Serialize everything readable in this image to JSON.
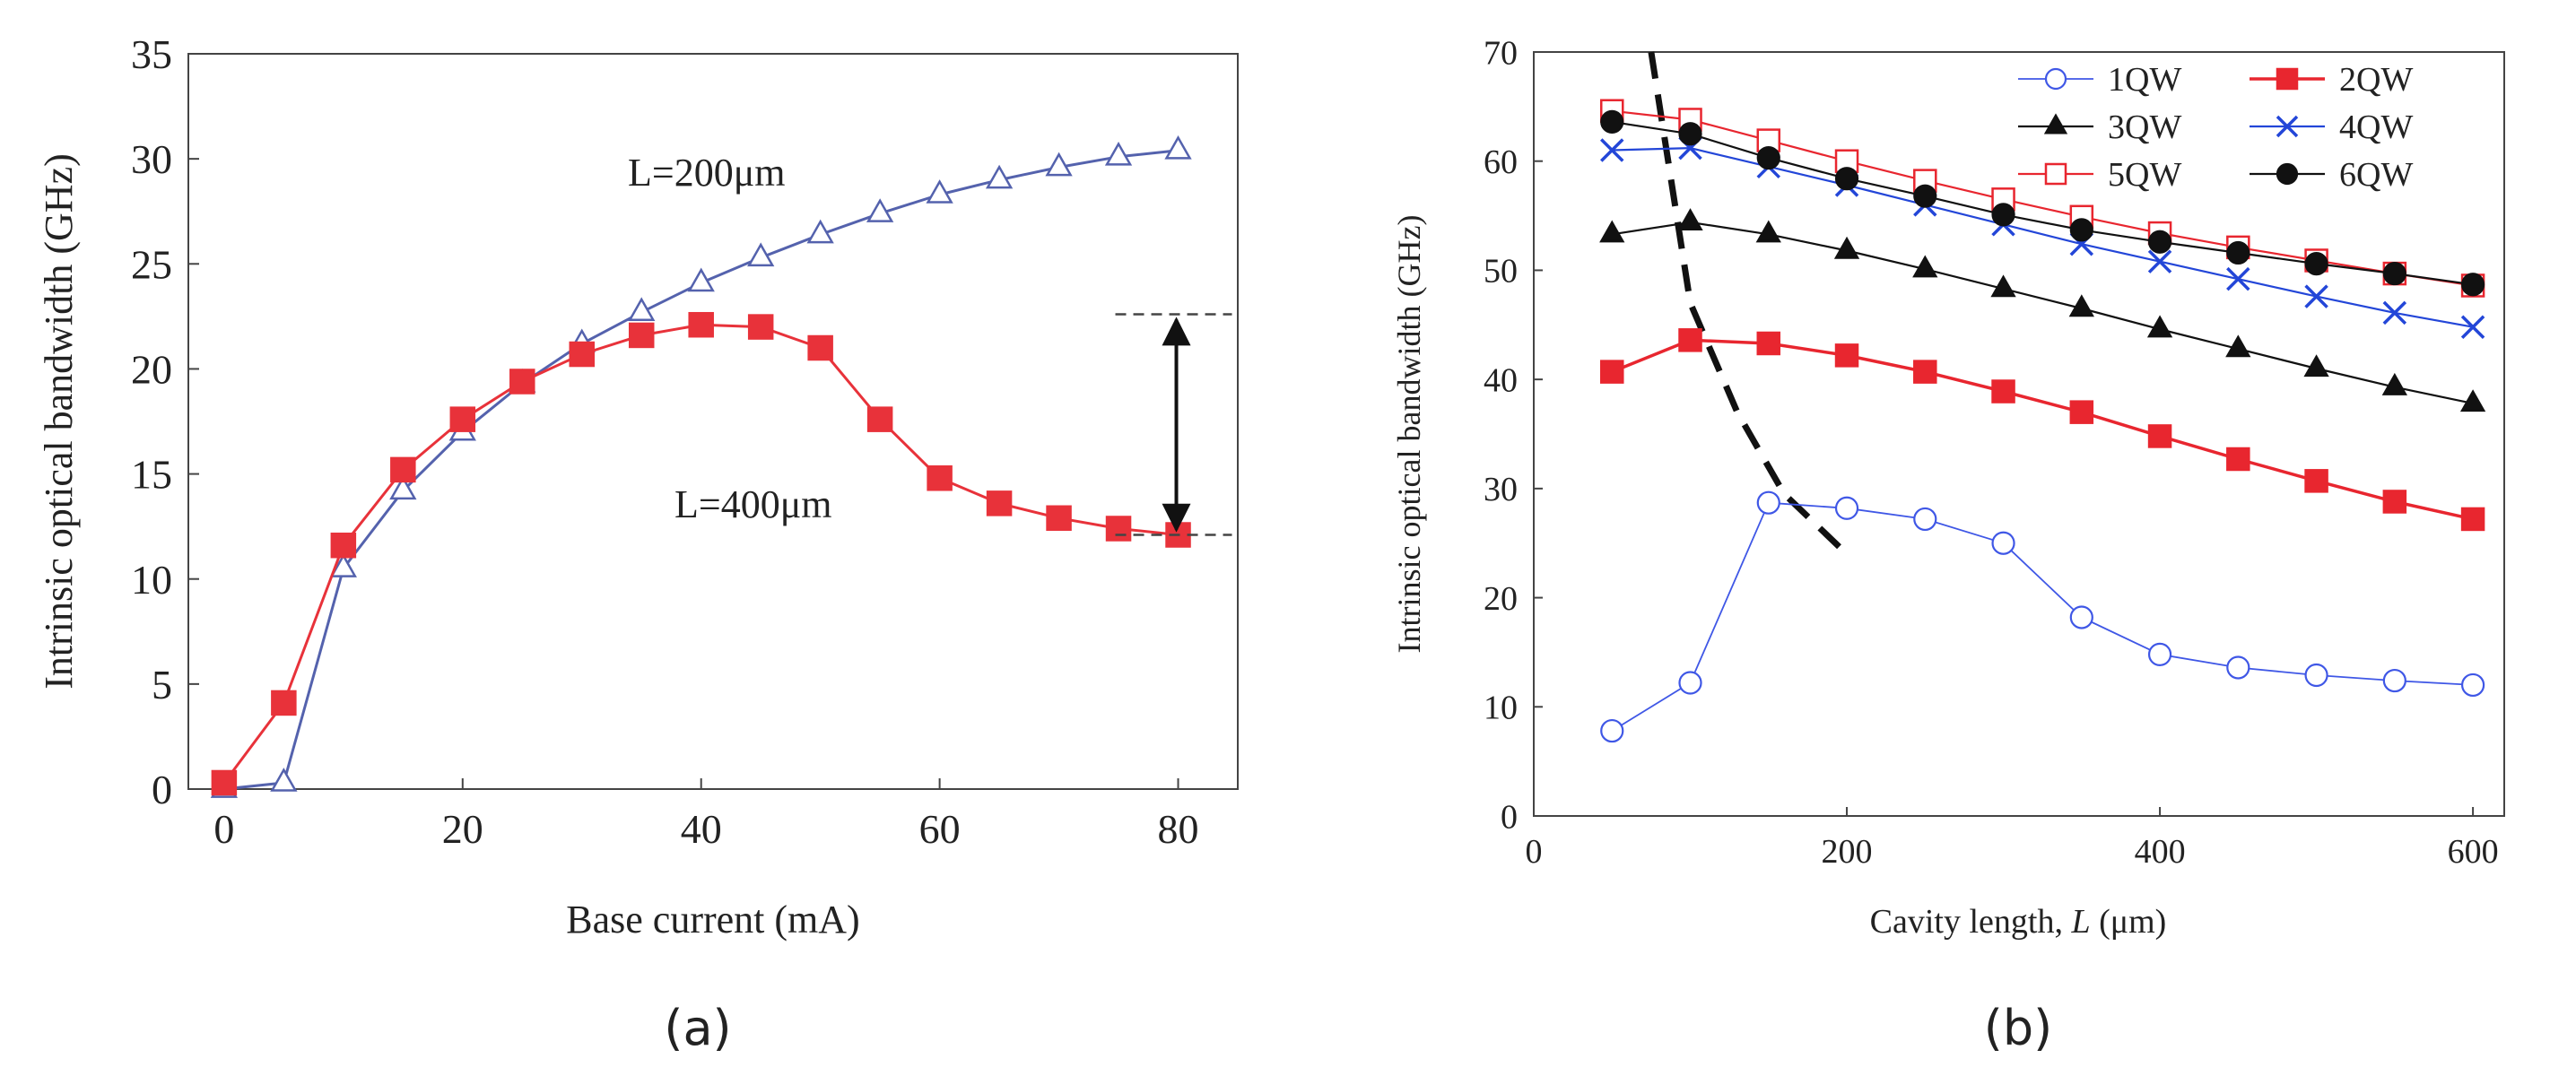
{
  "figure": {
    "panel_labels": [
      "(a)",
      "(b)"
    ]
  },
  "chart_data": [
    {
      "type": "line",
      "panel": "(a)",
      "title": "",
      "xlabel": "Base current (mA)",
      "ylabel": "Intrinsic optical bandwidth (GHz)",
      "xlim": [
        -3,
        85
      ],
      "ylim": [
        0,
        35
      ],
      "xticks": [
        0,
        20,
        40,
        60,
        80
      ],
      "yticks": [
        0,
        5,
        10,
        15,
        20,
        25,
        30,
        35
      ],
      "xtick_labels": [
        "0",
        "20",
        "40",
        "60",
        "80"
      ],
      "ytick_labels": [
        "0",
        "5",
        "10",
        "15",
        "20",
        "25",
        "30",
        "35"
      ],
      "grid": false,
      "series": [
        {
          "name": "L=200μm",
          "color": "#5462ad",
          "marker": "triangle-open",
          "x": [
            0,
            5,
            10,
            15,
            20,
            25,
            30,
            35,
            40,
            45,
            50,
            55,
            60,
            65,
            70,
            75,
            80
          ],
          "values": [
            0,
            0.3,
            10.5,
            14.2,
            17.0,
            19.3,
            21.2,
            22.7,
            24.1,
            25.3,
            26.4,
            27.4,
            28.3,
            29.0,
            29.6,
            30.1,
            30.4
          ]
        },
        {
          "name": "L=400μm",
          "color": "#e8323a",
          "marker": "square-filled",
          "x": [
            0,
            5,
            10,
            15,
            20,
            25,
            30,
            35,
            40,
            45,
            50,
            55,
            60,
            65,
            70,
            75,
            80
          ],
          "values": [
            0.3,
            4.1,
            11.6,
            15.2,
            17.6,
            19.4,
            20.7,
            21.6,
            22.1,
            22.0,
            21.0,
            17.6,
            14.8,
            13.6,
            12.9,
            12.4,
            12.1
          ]
        }
      ],
      "annotations": {
        "label_200": "L=200μm",
        "label_400": "L=400μm",
        "arrow": {
          "x": 80,
          "y_top": 22.6,
          "y_bottom": 12.1
        }
      }
    },
    {
      "type": "line",
      "panel": "(b)",
      "title": "",
      "xlabel_prefix": "Cavity length, ",
      "xlabel_var": "L",
      "xlabel_suffix": " (μm)",
      "ylabel": "Intrinsic optical bandwidth (GHz)",
      "xlim": [
        0,
        620
      ],
      "ylim": [
        0,
        70
      ],
      "xticks": [
        0,
        200,
        400,
        600
      ],
      "yticks": [
        0,
        10,
        20,
        30,
        40,
        50,
        60,
        70
      ],
      "xtick_labels": [
        "0",
        "200",
        "400",
        "600"
      ],
      "ytick_labels": [
        "0",
        "10",
        "20",
        "30",
        "40",
        "50",
        "60",
        "70"
      ],
      "grid": false,
      "legend_location": "top-right",
      "series": [
        {
          "name": "1QW",
          "color": "#3f57e6",
          "marker": "circle-open",
          "stroke_width": 1.8,
          "x": [
            50,
            100,
            150,
            200,
            250,
            300,
            350,
            400,
            450,
            500,
            550,
            600
          ],
          "values": [
            7.8,
            12.2,
            28.7,
            28.2,
            27.2,
            25.0,
            18.2,
            14.8,
            13.6,
            12.9,
            12.4,
            12.0
          ]
        },
        {
          "name": "2QW",
          "color": "#e8262f",
          "marker": "square-filled",
          "stroke_width": 3.5,
          "x": [
            50,
            100,
            150,
            200,
            250,
            300,
            350,
            400,
            450,
            500,
            550,
            600
          ],
          "values": [
            40.7,
            43.6,
            43.3,
            42.2,
            40.7,
            38.9,
            37.0,
            34.8,
            32.7,
            30.7,
            28.8,
            27.2
          ]
        },
        {
          "name": "3QW",
          "color": "#111111",
          "marker": "triangle-filled",
          "stroke_width": 2.2,
          "x": [
            50,
            100,
            150,
            200,
            250,
            300,
            350,
            400,
            450,
            500,
            550,
            600
          ],
          "values": [
            53.3,
            54.4,
            53.3,
            51.8,
            50.1,
            48.3,
            46.5,
            44.6,
            42.8,
            41.0,
            39.3,
            37.8
          ]
        },
        {
          "name": "4QW",
          "color": "#2346d8",
          "marker": "x",
          "stroke_width": 2.2,
          "x": [
            50,
            100,
            150,
            200,
            250,
            300,
            350,
            400,
            450,
            500,
            550,
            600
          ],
          "values": [
            61.0,
            61.2,
            59.5,
            57.8,
            56.0,
            54.2,
            52.4,
            50.8,
            49.2,
            47.6,
            46.1,
            44.8
          ]
        },
        {
          "name": "5QW",
          "color": "#e8262f",
          "marker": "square-open",
          "stroke_width": 2.2,
          "x": [
            50,
            100,
            150,
            200,
            250,
            300,
            350,
            400,
            450,
            500,
            550,
            600
          ],
          "values": [
            64.6,
            63.8,
            61.9,
            60.0,
            58.2,
            56.5,
            54.9,
            53.4,
            52.1,
            50.9,
            49.7,
            48.6
          ]
        },
        {
          "name": "6QW",
          "color": "#111111",
          "marker": "circle-filled",
          "stroke_width": 2.2,
          "x": [
            50,
            100,
            150,
            200,
            250,
            300,
            350,
            400,
            450,
            500,
            550,
            600
          ],
          "values": [
            63.6,
            62.5,
            60.3,
            58.4,
            56.8,
            55.1,
            53.7,
            52.6,
            51.6,
            50.6,
            49.7,
            48.7
          ]
        }
      ],
      "dashed_curve": {
        "name": "boundary",
        "x": [
          75,
          100,
          130,
          160,
          200
        ],
        "values": [
          70,
          47,
          37,
          29.5,
          24
        ]
      }
    }
  ]
}
